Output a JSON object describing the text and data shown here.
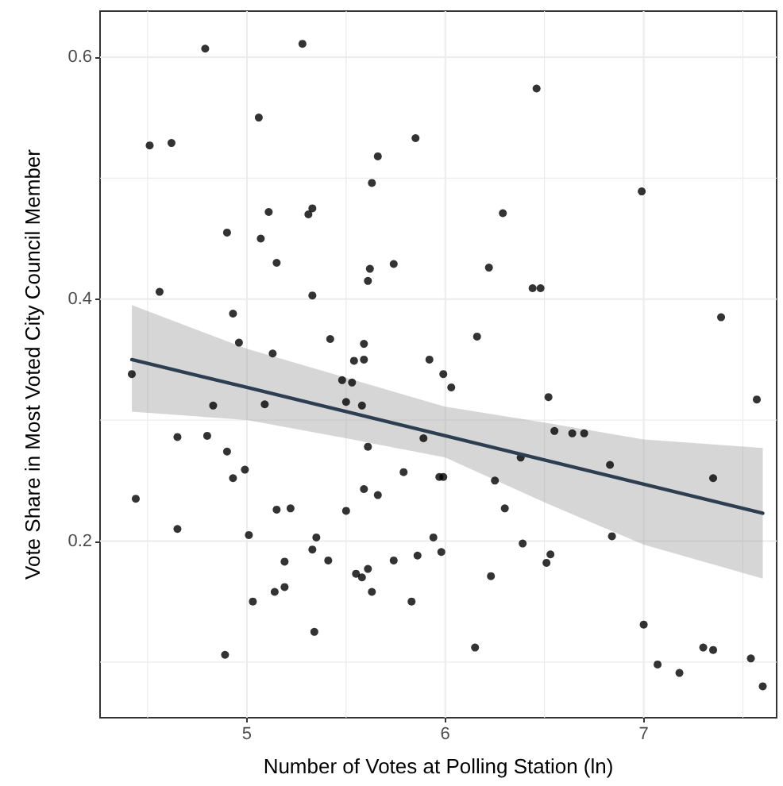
{
  "chart_data": {
    "type": "scatter",
    "xlabel": "Number of Votes at Polling Station (ln)",
    "ylabel": "Vote Share in Most Voted City Council Member",
    "xlim": [
      4.26,
      7.67
    ],
    "ylim": [
      0.054,
      0.638
    ],
    "xticks": [
      5,
      6,
      7
    ],
    "yticks": [
      0.2,
      0.4,
      0.6
    ],
    "grid": true,
    "series": [
      {
        "marker": "circle",
        "color": "#000000",
        "x": [
          4.79,
          5.28,
          5.06,
          4.51,
          4.62,
          5.85,
          5.66,
          5.63,
          5.11,
          5.33,
          5.31,
          4.9,
          5.07,
          5.15,
          5.62,
          5.74,
          5.61,
          4.56,
          5.33,
          4.93,
          5.42,
          4.96,
          5.59,
          5.13,
          5.54,
          5.59,
          5.92,
          6.46,
          6.99,
          6.29,
          6.22,
          6.44,
          6.48,
          7.39,
          6.16,
          4.42,
          5.99,
          5.48,
          5.53,
          4.83,
          5.09,
          5.5,
          5.58,
          4.65,
          4.8,
          5.89,
          4.9,
          5.61,
          4.99,
          4.93,
          5.79,
          5.97,
          5.99,
          4.44,
          5.59,
          5.66,
          5.15,
          5.22,
          5.5,
          4.65,
          5.01,
          5.35,
          5.33,
          5.94,
          5.98,
          5.19,
          5.41,
          5.74,
          5.86,
          5.55,
          5.58,
          5.61,
          5.19,
          5.14,
          5.63,
          5.03,
          5.83,
          5.34,
          4.89,
          6.03,
          6.52,
          7.57,
          6.55,
          6.64,
          6.7,
          6.38,
          6.83,
          7.35,
          6.25,
          6.3,
          6.39,
          6.84,
          6.53,
          6.51,
          6.23,
          6.15,
          7.0,
          7.07,
          7.18,
          7.3,
          7.35,
          7.54,
          7.6
        ],
        "values": [
          0.607,
          0.611,
          0.55,
          0.527,
          0.529,
          0.533,
          0.518,
          0.496,
          0.472,
          0.475,
          0.47,
          0.455,
          0.45,
          0.43,
          0.425,
          0.429,
          0.415,
          0.406,
          0.403,
          0.388,
          0.367,
          0.364,
          0.363,
          0.355,
          0.349,
          0.35,
          0.35,
          0.574,
          0.489,
          0.471,
          0.426,
          0.409,
          0.409,
          0.385,
          0.369,
          0.338,
          0.338,
          0.333,
          0.331,
          0.312,
          0.313,
          0.315,
          0.312,
          0.286,
          0.287,
          0.285,
          0.274,
          0.278,
          0.259,
          0.252,
          0.257,
          0.253,
          0.253,
          0.235,
          0.243,
          0.238,
          0.226,
          0.227,
          0.225,
          0.21,
          0.205,
          0.203,
          0.193,
          0.203,
          0.191,
          0.183,
          0.184,
          0.184,
          0.188,
          0.173,
          0.17,
          0.177,
          0.162,
          0.158,
          0.158,
          0.15,
          0.15,
          0.125,
          0.106,
          0.327,
          0.319,
          0.317,
          0.291,
          0.289,
          0.289,
          0.269,
          0.263,
          0.252,
          0.25,
          0.227,
          0.198,
          0.204,
          0.189,
          0.182,
          0.171,
          0.112,
          0.131,
          0.098,
          0.091,
          0.112,
          0.11,
          0.103,
          0.08
        ]
      },
      {
        "type": "line",
        "color": "#2c3e50",
        "x": [
          4.42,
          5,
          5.5,
          6,
          6.5,
          7,
          7.6
        ],
        "values": [
          0.35,
          0.327,
          0.307,
          0.287,
          0.267,
          0.247,
          0.223
        ],
        "lower": [
          0.307,
          0.3,
          0.285,
          0.269,
          0.232,
          0.197,
          0.169
        ],
        "upper": [
          0.395,
          0.359,
          0.335,
          0.311,
          0.298,
          0.284,
          0.277
        ]
      }
    ]
  }
}
